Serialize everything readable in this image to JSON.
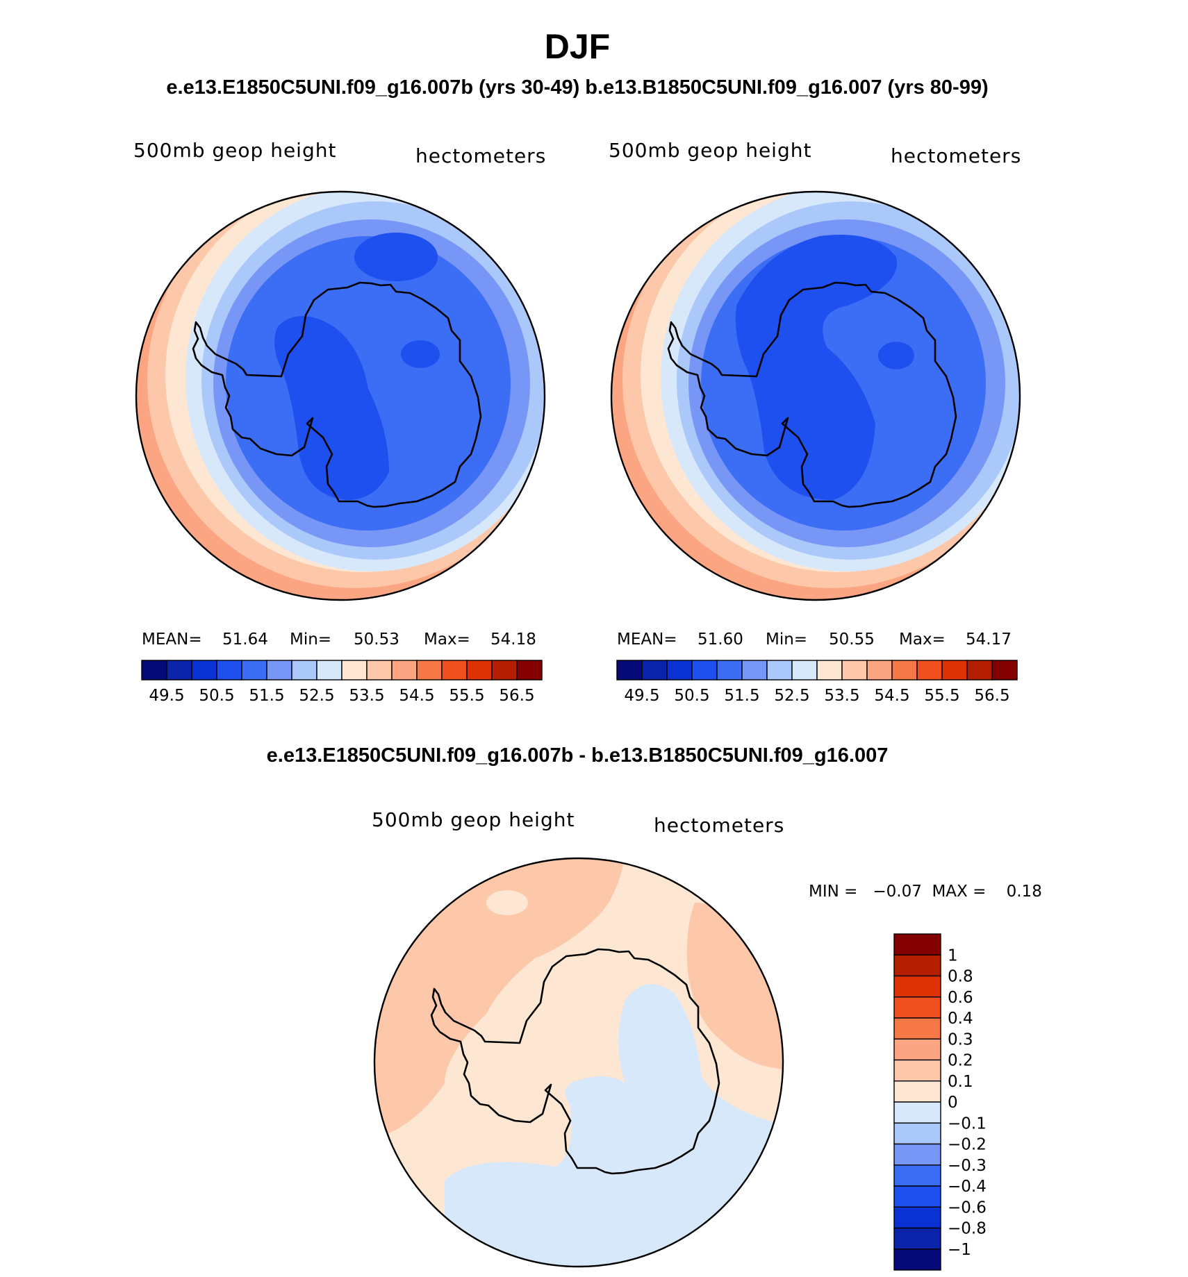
{
  "title": "DJF",
  "subtitle": "e.e13.E1850C5UNI.f09_g16.007b (yrs 30-49)  b.e13.B1850C5UNI.f09_g16.007 (yrs 80-99)",
  "panels": [
    {
      "variable": "500mb geop height",
      "units": "hectometers",
      "stats": {
        "mean_label": "MEAN=",
        "mean": "51.64",
        "min_label": "Min=",
        "min": "50.53",
        "max_label": "Max=",
        "max": "54.18"
      }
    },
    {
      "variable": "500mb geop height",
      "units": "hectometers",
      "stats": {
        "mean_label": "MEAN=",
        "mean": "51.60",
        "min_label": "Min=",
        "min": "50.55",
        "max_label": "Max=",
        "max": "54.17"
      }
    }
  ],
  "diff_title": "e.e13.E1850C5UNI.f09_g16.007b - b.e13.B1850C5UNI.f09_g16.007",
  "diff_panel": {
    "variable": "500mb geop height",
    "units": "hectometers",
    "minmax": "MIN =   −0.07  MAX =    0.18"
  },
  "colorbar_main": {
    "colors": [
      "#050a78",
      "#0a23a8",
      "#0a32d2",
      "#1e50f0",
      "#3c6ef5",
      "#7896f5",
      "#aac8fa",
      "#d7e8fa",
      "#fde6d2",
      "#fdc8aa",
      "#fca582",
      "#f57846",
      "#f0501e",
      "#dc3204",
      "#b41e00",
      "#820000"
    ],
    "labels": [
      "49.5",
      "50.5",
      "51.5",
      "52.5",
      "53.5",
      "54.5",
      "55.5",
      "56.5"
    ]
  },
  "colorbar_diff": {
    "colors": [
      "#050a78",
      "#0a23a8",
      "#0a32d2",
      "#1e50f0",
      "#3c6ef5",
      "#7896f5",
      "#aac8fa",
      "#d7e8fa",
      "#fde6d2",
      "#fdc8aa",
      "#fca582",
      "#f57846",
      "#f0501e",
      "#dc3204",
      "#b41e00",
      "#820000"
    ],
    "labels": [
      "1",
      "0.8",
      "0.6",
      "0.4",
      "0.3",
      "0.2",
      "0.1",
      "0",
      "−0.1",
      "−0.2",
      "−0.3",
      "−0.4",
      "−0.6",
      "−0.8",
      "−1"
    ]
  }
}
